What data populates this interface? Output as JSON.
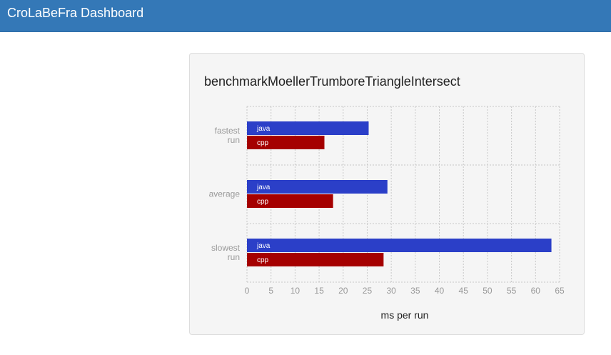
{
  "navbar": {
    "brand": "CroLaBeFra Dashboard"
  },
  "panel": {
    "title": "benchmarkMoellerTrumboreTriangleIntersect"
  },
  "colors": {
    "navbar": "#3478b7",
    "java": "#2b3fc8",
    "cpp": "#a50000"
  },
  "chart_data": {
    "type": "bar",
    "orientation": "horizontal",
    "categories": [
      [
        "fastest",
        "run"
      ],
      [
        "average"
      ],
      [
        "slowest",
        "run"
      ]
    ],
    "series": [
      {
        "name": "java",
        "color": "#2b3fc8",
        "values": [
          25.3,
          29.2,
          63.3
        ]
      },
      {
        "name": "cpp",
        "color": "#a50000",
        "values": [
          16.1,
          17.9,
          28.4
        ]
      }
    ],
    "xticks": [
      0,
      5,
      10,
      15,
      20,
      25,
      30,
      35,
      40,
      45,
      50,
      55,
      60,
      65
    ],
    "xlim": [
      0,
      65
    ],
    "xlabel": "ms per run",
    "grid": true
  }
}
